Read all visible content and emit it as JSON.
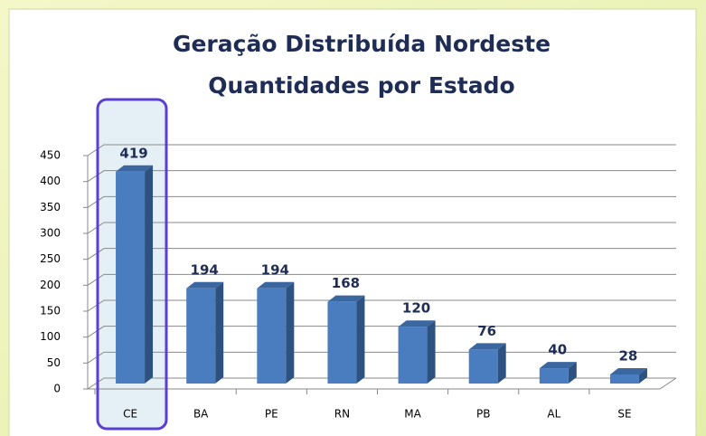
{
  "chart_data": {
    "type": "bar3d",
    "title": [
      "Geração Distribuída Nordeste",
      "Quantidades por Estado"
    ],
    "categories": [
      "CE",
      "BA",
      "PE",
      "RN",
      "MA",
      "PB",
      "AL",
      "SE"
    ],
    "values": [
      419,
      194,
      194,
      168,
      120,
      76,
      40,
      28
    ],
    "color": "#4a7cc0",
    "ylim": [
      0,
      450
    ],
    "yticks": [
      0,
      50,
      100,
      150,
      200,
      250,
      300,
      350,
      400,
      450
    ],
    "grid": true
  }
}
